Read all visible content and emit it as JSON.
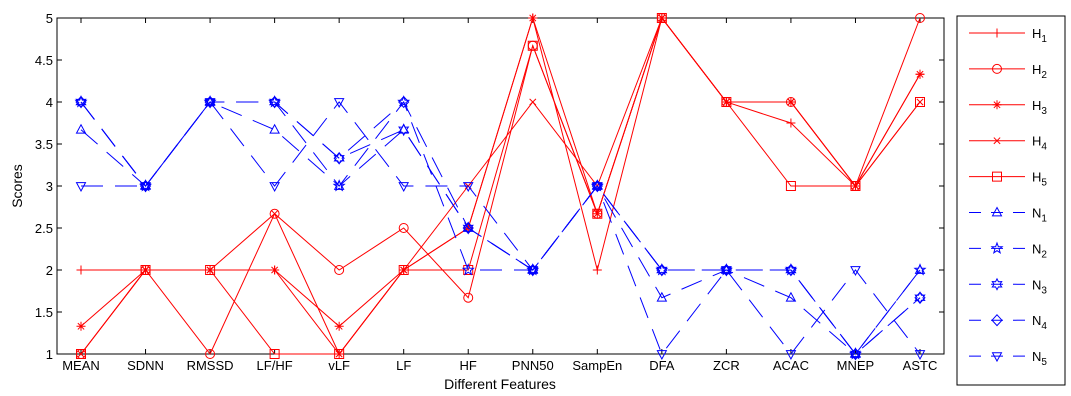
{
  "chart_data": {
    "type": "line",
    "xlabel": "Different Features",
    "ylabel": "Scores",
    "categories": [
      "MEAN",
      "SDNN",
      "RMSSD",
      "LF/HF",
      "vLF",
      "LF",
      "HF",
      "PNN50",
      "SampEn",
      "DFA",
      "ZCR",
      "ACAC",
      "MNEP",
      "ASTC"
    ],
    "ylim": [
      1,
      5
    ],
    "yticks": [
      "1",
      "1.5",
      "2",
      "2.5",
      "3",
      "3.5",
      "4",
      "4.5",
      "5"
    ],
    "grid": false,
    "legend_position": "right-outside",
    "series": [
      {
        "label": "H",
        "sub": "1",
        "color": "#ff0000",
        "dash": "solid",
        "marker": "plus",
        "values": [
          2,
          2,
          2,
          2,
          1,
          2,
          2.5,
          5,
          2,
          5,
          4,
          3.75,
          3,
          4.33
        ]
      },
      {
        "label": "H",
        "sub": "2",
        "color": "#ff0000",
        "dash": "solid",
        "marker": "circle",
        "values": [
          1,
          2,
          1,
          2.67,
          2,
          2.5,
          1.67,
          4.67,
          2.67,
          5,
          4,
          4,
          3,
          5
        ]
      },
      {
        "label": "H",
        "sub": "3",
        "color": "#ff0000",
        "dash": "solid",
        "marker": "star",
        "values": [
          1.33,
          2,
          2,
          2,
          1.33,
          2,
          2.5,
          5,
          2.67,
          5,
          4,
          4,
          3,
          4.33
        ]
      },
      {
        "label": "H",
        "sub": "4",
        "color": "#ff0000",
        "dash": "solid",
        "marker": "x",
        "values": [
          1,
          2,
          2,
          2.67,
          1,
          2,
          3,
          4,
          3,
          5,
          4,
          4,
          3,
          4
        ]
      },
      {
        "label": "H",
        "sub": "5",
        "color": "#ff0000",
        "dash": "solid",
        "marker": "square",
        "values": [
          1,
          2,
          2,
          1,
          1,
          2,
          2,
          4.67,
          2.67,
          5,
          4,
          3,
          3,
          4
        ]
      },
      {
        "label": "N",
        "sub": "1",
        "color": "#0000ff",
        "dash": "dashed",
        "marker": "triangle-up",
        "values": [
          3.67,
          3,
          4,
          3.67,
          3,
          3.67,
          2.5,
          2,
          3,
          1.67,
          2,
          1.67,
          1,
          2
        ]
      },
      {
        "label": "N",
        "sub": "2",
        "color": "#0000ff",
        "dash": "dashed",
        "marker": "pentagram",
        "values": [
          4,
          3,
          4,
          4,
          3,
          4,
          2,
          2,
          3,
          2,
          2,
          2,
          1,
          2
        ]
      },
      {
        "label": "N",
        "sub": "3",
        "color": "#0000ff",
        "dash": "dashed",
        "marker": "hexagram",
        "values": [
          4,
          3,
          4,
          4,
          3.33,
          3.67,
          2.5,
          2,
          3,
          2,
          2,
          2,
          1,
          1.67
        ]
      },
      {
        "label": "N",
        "sub": "4",
        "color": "#0000ff",
        "dash": "dashed",
        "marker": "diamond",
        "values": [
          4,
          3,
          4,
          4,
          3.33,
          4,
          2.5,
          2,
          3,
          2,
          2,
          2,
          1,
          1.67
        ]
      },
      {
        "label": "N",
        "sub": "5",
        "color": "#0000ff",
        "dash": "dashed",
        "marker": "triangle-down",
        "values": [
          3,
          3,
          4,
          3,
          4,
          3,
          3,
          2,
          3,
          1,
          2,
          1,
          2,
          1
        ]
      }
    ]
  }
}
